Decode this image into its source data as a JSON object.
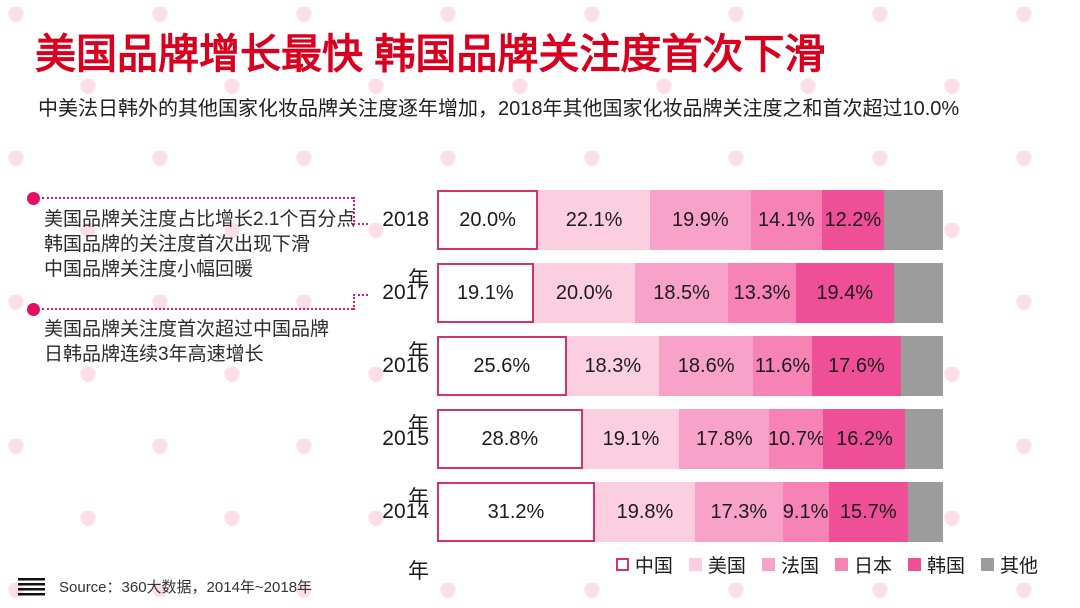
{
  "page": {
    "title": "美国品牌增长最快 韩国品牌关注度首次下滑",
    "subtitle": "中美法日韩外的其他国家化妆品牌关注度逐年增加，2018年其他国家化妆品牌关注度之和首次超过10.0%"
  },
  "annotations": [
    {
      "points_to": "2018年",
      "lines": [
        "美国品牌关注度占比增长2.1个百分点",
        "韩国品牌的关注度首次出现下滑",
        "中国品牌关注度小幅回暖"
      ]
    },
    {
      "points_to": "2017年",
      "lines": [
        "美国品牌关注度首次超过中国品牌",
        "日韩品牌连续3年高速增长"
      ]
    }
  ],
  "chart_data": {
    "type": "bar",
    "stacked": true,
    "orientation": "horizontal",
    "unit": "%",
    "xlim": [
      0,
      100
    ],
    "value_labels": "inside",
    "legend_position": "bottom-right",
    "grid": false,
    "categories": [
      "2018年",
      "2017年",
      "2016年",
      "2015年",
      "2014年"
    ],
    "series": [
      {
        "key": "china",
        "name": "中国",
        "color": "#ffffff",
        "border_color": "#d6336c",
        "values": [
          20.0,
          19.1,
          25.6,
          28.8,
          31.2
        ]
      },
      {
        "key": "usa",
        "name": "美国",
        "color": "#fbcfdf",
        "values": [
          22.1,
          20.0,
          18.3,
          19.1,
          19.8
        ]
      },
      {
        "key": "france",
        "name": "法国",
        "color": "#f8a2c9",
        "values": [
          19.9,
          18.5,
          18.6,
          17.8,
          17.3
        ]
      },
      {
        "key": "japan",
        "name": "日本",
        "color": "#f782b6",
        "values": [
          14.1,
          13.3,
          11.6,
          10.7,
          9.1
        ]
      },
      {
        "key": "korea",
        "name": "韩国",
        "color": "#ee4f96",
        "values": [
          12.2,
          19.4,
          17.6,
          16.2,
          15.7
        ]
      },
      {
        "key": "others",
        "name": "其他",
        "color": "#9c9c9c",
        "values": [
          11.7,
          9.7,
          8.3,
          7.4,
          6.9
        ],
        "show_label": false
      }
    ]
  },
  "footer": {
    "source": "Source：360大数据，2014年~2018年",
    "icon": "menu-icon"
  },
  "colors": {
    "title_red": "#d9001f",
    "accent_crimson": "#e8176b",
    "china_border": "#d6336c",
    "background_dot": "#fbdee6",
    "others_gray": "#9c9c9c"
  }
}
